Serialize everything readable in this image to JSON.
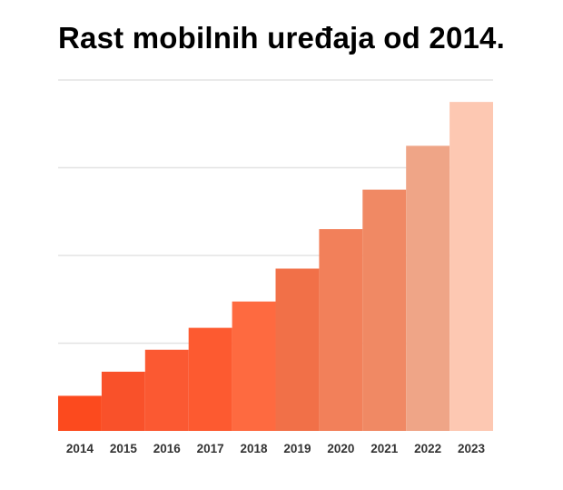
{
  "chart_data": {
    "type": "bar",
    "title": "Rast mobilnih uređaja od 2014.",
    "xlabel": "",
    "ylabel": "",
    "categories": [
      "2014",
      "2015",
      "2016",
      "2017",
      "2018",
      "2019",
      "2020",
      "2021",
      "2022",
      "2023"
    ],
    "values": [
      8,
      13.5,
      18.5,
      23.5,
      29.5,
      37,
      46,
      55,
      65,
      75
    ],
    "ylim": [
      0,
      80
    ],
    "grid": true,
    "bar_colors": [
      "#fc4a1e",
      "#f9512a",
      "#fb5932",
      "#fd5a30",
      "#fe6a40",
      "#f17048",
      "#f2805a",
      "#f08964",
      "#efa587",
      "#fdc8b2"
    ],
    "grid_color": "#e3e3e3"
  }
}
